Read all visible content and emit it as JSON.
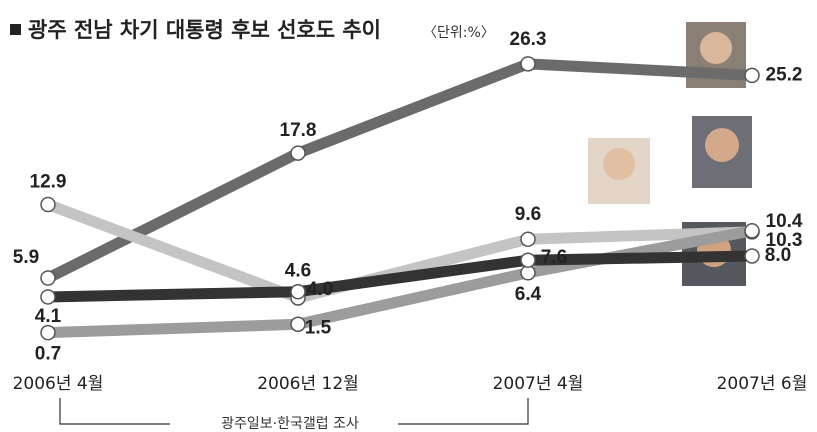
{
  "chart_data": {
    "type": "line",
    "title": "광주 전남 차기 대통령 후보 선호도 추이",
    "subtitle": "〈단위:%〉",
    "source": "광주일보·한국갤럽 조사",
    "categories": [
      "2006년 4월",
      "2006년 12월",
      "2007년 4월",
      "2007년 6월"
    ],
    "series": [
      {
        "color": "#6b6b6b",
        "values": [
          5.9,
          17.8,
          26.3,
          25.2
        ],
        "value_labels": [
          "5.9",
          "17.8",
          "26.3",
          "25.2"
        ]
      },
      {
        "color": "#c4c4c4",
        "values": [
          12.9,
          4.0,
          9.6,
          10.3
        ],
        "value_labels": [
          "12.9",
          "4.0",
          "9.6",
          "10.3"
        ]
      },
      {
        "color": "#9c9c9c",
        "values": [
          0.7,
          1.5,
          6.4,
          10.4
        ],
        "value_labels": [
          "0.7",
          "1.5",
          "6.4",
          "10.4"
        ]
      },
      {
        "color": "#333333",
        "values": [
          4.1,
          4.6,
          7.6,
          8.0
        ],
        "value_labels": [
          "4.1",
          "4.6",
          "7.6",
          "8.0"
        ]
      }
    ]
  }
}
